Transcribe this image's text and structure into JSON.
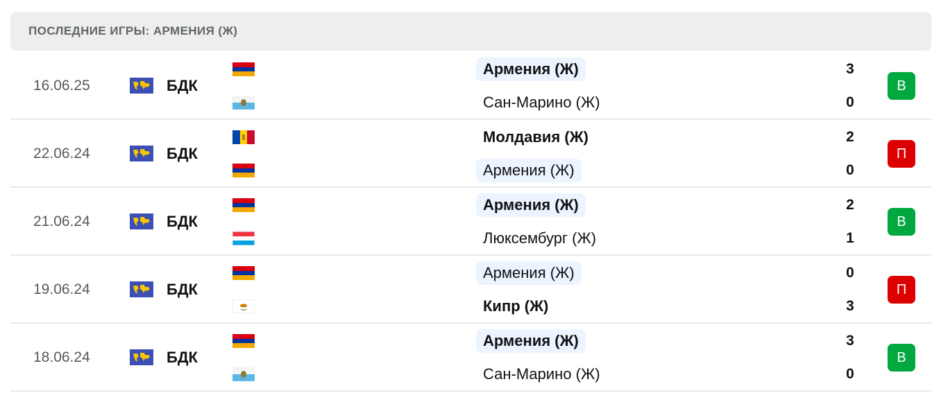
{
  "title": "ПОСЛЕДНИЕ ИГРЫ: АРМЕНИЯ (Ж)",
  "colors": {
    "win": "#00a83f",
    "loss": "#dc0000",
    "highlight": "#ebf4ff"
  },
  "matches": [
    {
      "date": "16.06.25",
      "competition": "БДК",
      "home": {
        "name": "Армения (Ж)",
        "flag": "armenia",
        "score": "3",
        "highlight": true,
        "winner": true
      },
      "away": {
        "name": "Сан-Марино (Ж)",
        "flag": "san-marino",
        "score": "0",
        "highlight": false,
        "winner": false
      },
      "result": "В",
      "result_type": "win"
    },
    {
      "date": "22.06.24",
      "competition": "БДК",
      "home": {
        "name": "Молдавия (Ж)",
        "flag": "moldova",
        "score": "2",
        "highlight": false,
        "winner": true
      },
      "away": {
        "name": "Армения (Ж)",
        "flag": "armenia",
        "score": "0",
        "highlight": true,
        "winner": false
      },
      "result": "П",
      "result_type": "loss"
    },
    {
      "date": "21.06.24",
      "competition": "БДК",
      "home": {
        "name": "Армения (Ж)",
        "flag": "armenia",
        "score": "2",
        "highlight": true,
        "winner": true
      },
      "away": {
        "name": "Люксембург (Ж)",
        "flag": "luxembourg",
        "score": "1",
        "highlight": false,
        "winner": false
      },
      "result": "В",
      "result_type": "win"
    },
    {
      "date": "19.06.24",
      "competition": "БДК",
      "home": {
        "name": "Армения (Ж)",
        "flag": "armenia",
        "score": "0",
        "highlight": true,
        "winner": false
      },
      "away": {
        "name": "Кипр (Ж)",
        "flag": "cyprus",
        "score": "3",
        "highlight": false,
        "winner": true
      },
      "result": "П",
      "result_type": "loss"
    },
    {
      "date": "18.06.24",
      "competition": "БДК",
      "home": {
        "name": "Армения (Ж)",
        "flag": "armenia",
        "score": "3",
        "highlight": true,
        "winner": true
      },
      "away": {
        "name": "Сан-Марино (Ж)",
        "flag": "san-marino",
        "score": "0",
        "highlight": false,
        "winner": false
      },
      "result": "В",
      "result_type": "win"
    }
  ]
}
